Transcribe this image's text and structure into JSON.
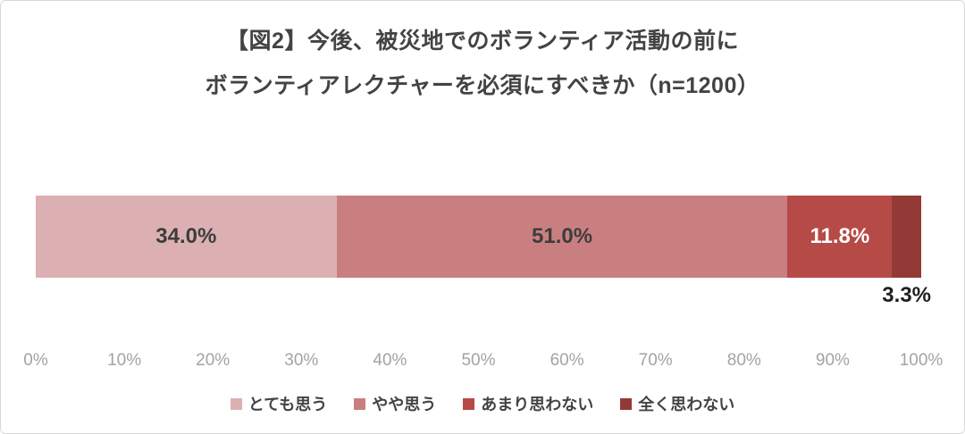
{
  "chart_data": {
    "type": "bar",
    "orientation": "horizontal",
    "stacked": true,
    "title_line1": "【図2】今後、被災地でのボランティア活動の前に",
    "title_line2": "ボランティアレクチャーを必須にすべきか（n=1200）",
    "sample_size": "n=1200",
    "xlim": [
      0,
      100
    ],
    "grid": false,
    "legend_position": "bottom",
    "x_ticks": [
      "0%",
      "10%",
      "20%",
      "30%",
      "40%",
      "50%",
      "60%",
      "70%",
      "80%",
      "90%",
      "100%"
    ],
    "series": [
      {
        "name": "とても思う",
        "value": 34.0,
        "display": "34.0%",
        "color": "#dcb0b2",
        "label_color": "#3d3d3d",
        "label_position": "inside"
      },
      {
        "name": "やや思う",
        "value": 51.0,
        "display": "51.0%",
        "color": "#c97f80",
        "label_color": "#3d3d3d",
        "label_position": "inside"
      },
      {
        "name": "あまり思わない",
        "value": 11.8,
        "display": "11.8%",
        "color": "#b64a47",
        "label_color": "#ffffff",
        "label_position": "inside"
      },
      {
        "name": "全く思わない",
        "value": 3.3,
        "display": "3.3%",
        "color": "#943a36",
        "label_color": "#1f1f1f",
        "label_position": "below"
      }
    ]
  }
}
